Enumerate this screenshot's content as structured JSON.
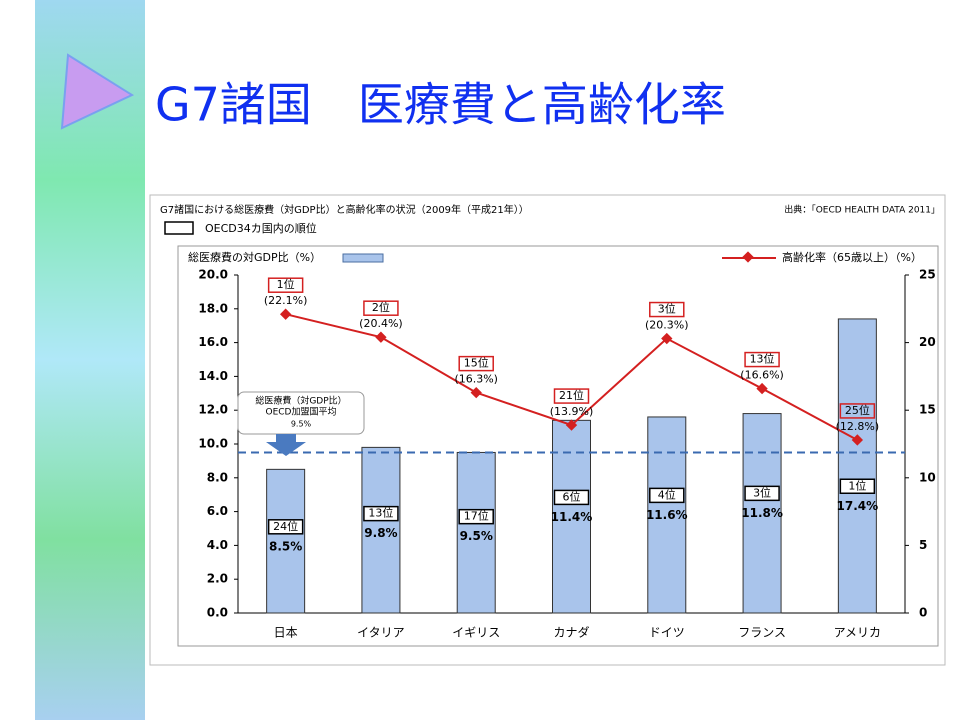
{
  "title": "G7諸国　医療費と高齢化率",
  "chart_data": {
    "type": "bar_line",
    "title": "G7諸国における総医療費（対GDP比）と高齢化率の状況（2009年（平成21年））",
    "source": "出典：「OECD HEALTH DATA 2011」",
    "rank_legend": "OECD34カ国内の順位",
    "categories": [
      "日本",
      "イタリア",
      "イギリス",
      "カナダ",
      "ドイツ",
      "フランス",
      "アメリカ"
    ],
    "series": [
      {
        "name": "総医療費の対GDP比（%）",
        "color": "#a9c4eb",
        "values": [
          8.5,
          9.8,
          9.5,
          11.4,
          11.6,
          11.8,
          17.4
        ],
        "value_labels": [
          "8.5%",
          "9.8%",
          "9.5%",
          "11.4%",
          "11.6%",
          "11.8%",
          "17.4%"
        ],
        "ranks": [
          "24位",
          "13位",
          "17位",
          "6位",
          "4位",
          "3位",
          "1位"
        ]
      },
      {
        "name": "高齢化率（65歳以上）（%）",
        "color": "#d42020",
        "axis": "y2",
        "values": [
          22.1,
          20.4,
          16.3,
          13.9,
          20.3,
          16.6,
          12.8
        ],
        "value_labels": [
          "(22.1%)",
          "(20.4%)",
          "(16.3%)",
          "(13.9%)",
          "(20.3%)",
          "(16.6%)",
          "(12.8%)"
        ],
        "ranks": [
          "1位",
          "2位",
          "15位",
          "21位",
          "3位",
          "13位",
          "25位"
        ]
      }
    ],
    "annotation": {
      "lines": [
        "総医療費（対GDP比）",
        "OECD加盟国平均"
      ],
      "value": 9.5,
      "value_label": "9.5%"
    },
    "ylim": [
      0,
      20
    ],
    "yticks": [
      {
        "value": 0,
        "label": "0.0"
      },
      {
        "value": 2,
        "label": "2.0"
      },
      {
        "value": 4,
        "label": "4.0"
      },
      {
        "value": 6,
        "label": "6.0"
      },
      {
        "value": 8,
        "label": "8.0"
      },
      {
        "value": 10,
        "label": "10.0"
      },
      {
        "value": 12,
        "label": "12.0"
      },
      {
        "value": 14,
        "label": "14.0"
      },
      {
        "value": 16,
        "label": "16.0"
      },
      {
        "value": 18,
        "label": "18.0"
      },
      {
        "value": 20,
        "label": "20.0"
      }
    ],
    "y2lim": [
      0,
      25
    ],
    "y2ticks": [
      0,
      5,
      10,
      15,
      20,
      25
    ]
  }
}
